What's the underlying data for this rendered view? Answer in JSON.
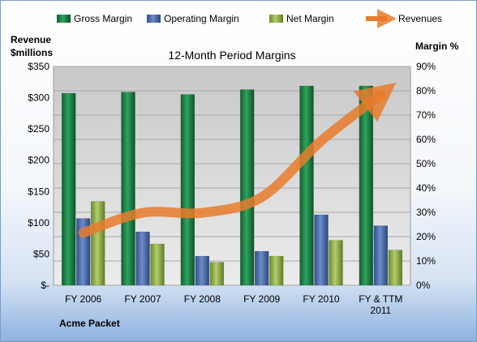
{
  "chart_data": {
    "type": "bar",
    "title": "12-Month Period Margins",
    "company": "Acme Packet",
    "left_axis_title": [
      "Revenue",
      "$millions"
    ],
    "right_axis_title": "Margin %",
    "categories": [
      [
        "FY 2006"
      ],
      [
        "FY 2007"
      ],
      [
        "FY 2008"
      ],
      [
        "FY 2009"
      ],
      [
        "FY 2010"
      ],
      [
        "FY & TTM",
        "2011"
      ]
    ],
    "left_ticks": [
      "$-",
      "$50",
      "$100",
      "$150",
      "$200",
      "$250",
      "$300",
      "$350"
    ],
    "right_ticks": [
      "0%",
      "10%",
      "20%",
      "30%",
      "40%",
      "50%",
      "60%",
      "70%",
      "80%",
      "90%"
    ],
    "ylim_left": [
      0,
      350
    ],
    "ylim_right": [
      0,
      90
    ],
    "grid": true,
    "legend_position": "top",
    "series": [
      {
        "name": "Gross Margin",
        "kind": "bar",
        "axis": "right",
        "color": "#1f8a4c",
        "values": [
          79,
          79.5,
          78.5,
          80.5,
          82,
          82
        ]
      },
      {
        "name": "Operating Margin",
        "kind": "bar",
        "axis": "right",
        "color": "#4f6fae",
        "values": [
          27.5,
          22,
          12,
          14,
          29,
          24.5
        ]
      },
      {
        "name": "Net Margin",
        "kind": "bar",
        "axis": "right",
        "color": "#8fae4a",
        "values": [
          34.5,
          17,
          9.5,
          12,
          18.5,
          14.5
        ]
      },
      {
        "name": "Revenues",
        "kind": "line",
        "axis": "left",
        "color": "#e87b2c",
        "values": [
          84,
          116,
          116,
          141,
          231,
          305
        ]
      }
    ]
  }
}
